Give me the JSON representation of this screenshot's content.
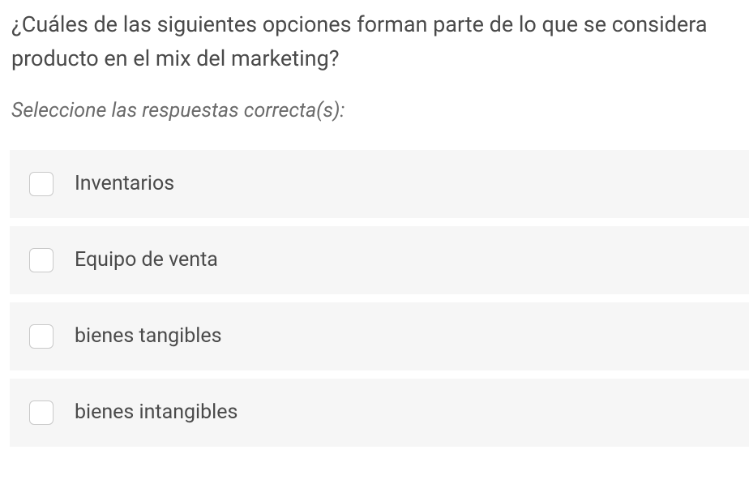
{
  "question": "¿Cuáles de las siguientes opciones forman parte de lo que se considera producto en el mix del marketing?",
  "instruction": "Seleccione las respuestas correcta(s):",
  "options": [
    {
      "label": "Inventarios"
    },
    {
      "label": "Equipo de venta"
    },
    {
      "label": "bienes tangibles"
    },
    {
      "label": "bienes intangibles"
    }
  ],
  "colors": {
    "text": "#4a4a4a",
    "instruction_text": "#6b6b6b",
    "option_bg": "#f6f6f6",
    "checkbox_border": "#c9c9c9",
    "page_bg": "#ffffff"
  },
  "typography": {
    "question_fontsize": 27,
    "instruction_fontsize": 25,
    "option_fontsize": 25
  }
}
